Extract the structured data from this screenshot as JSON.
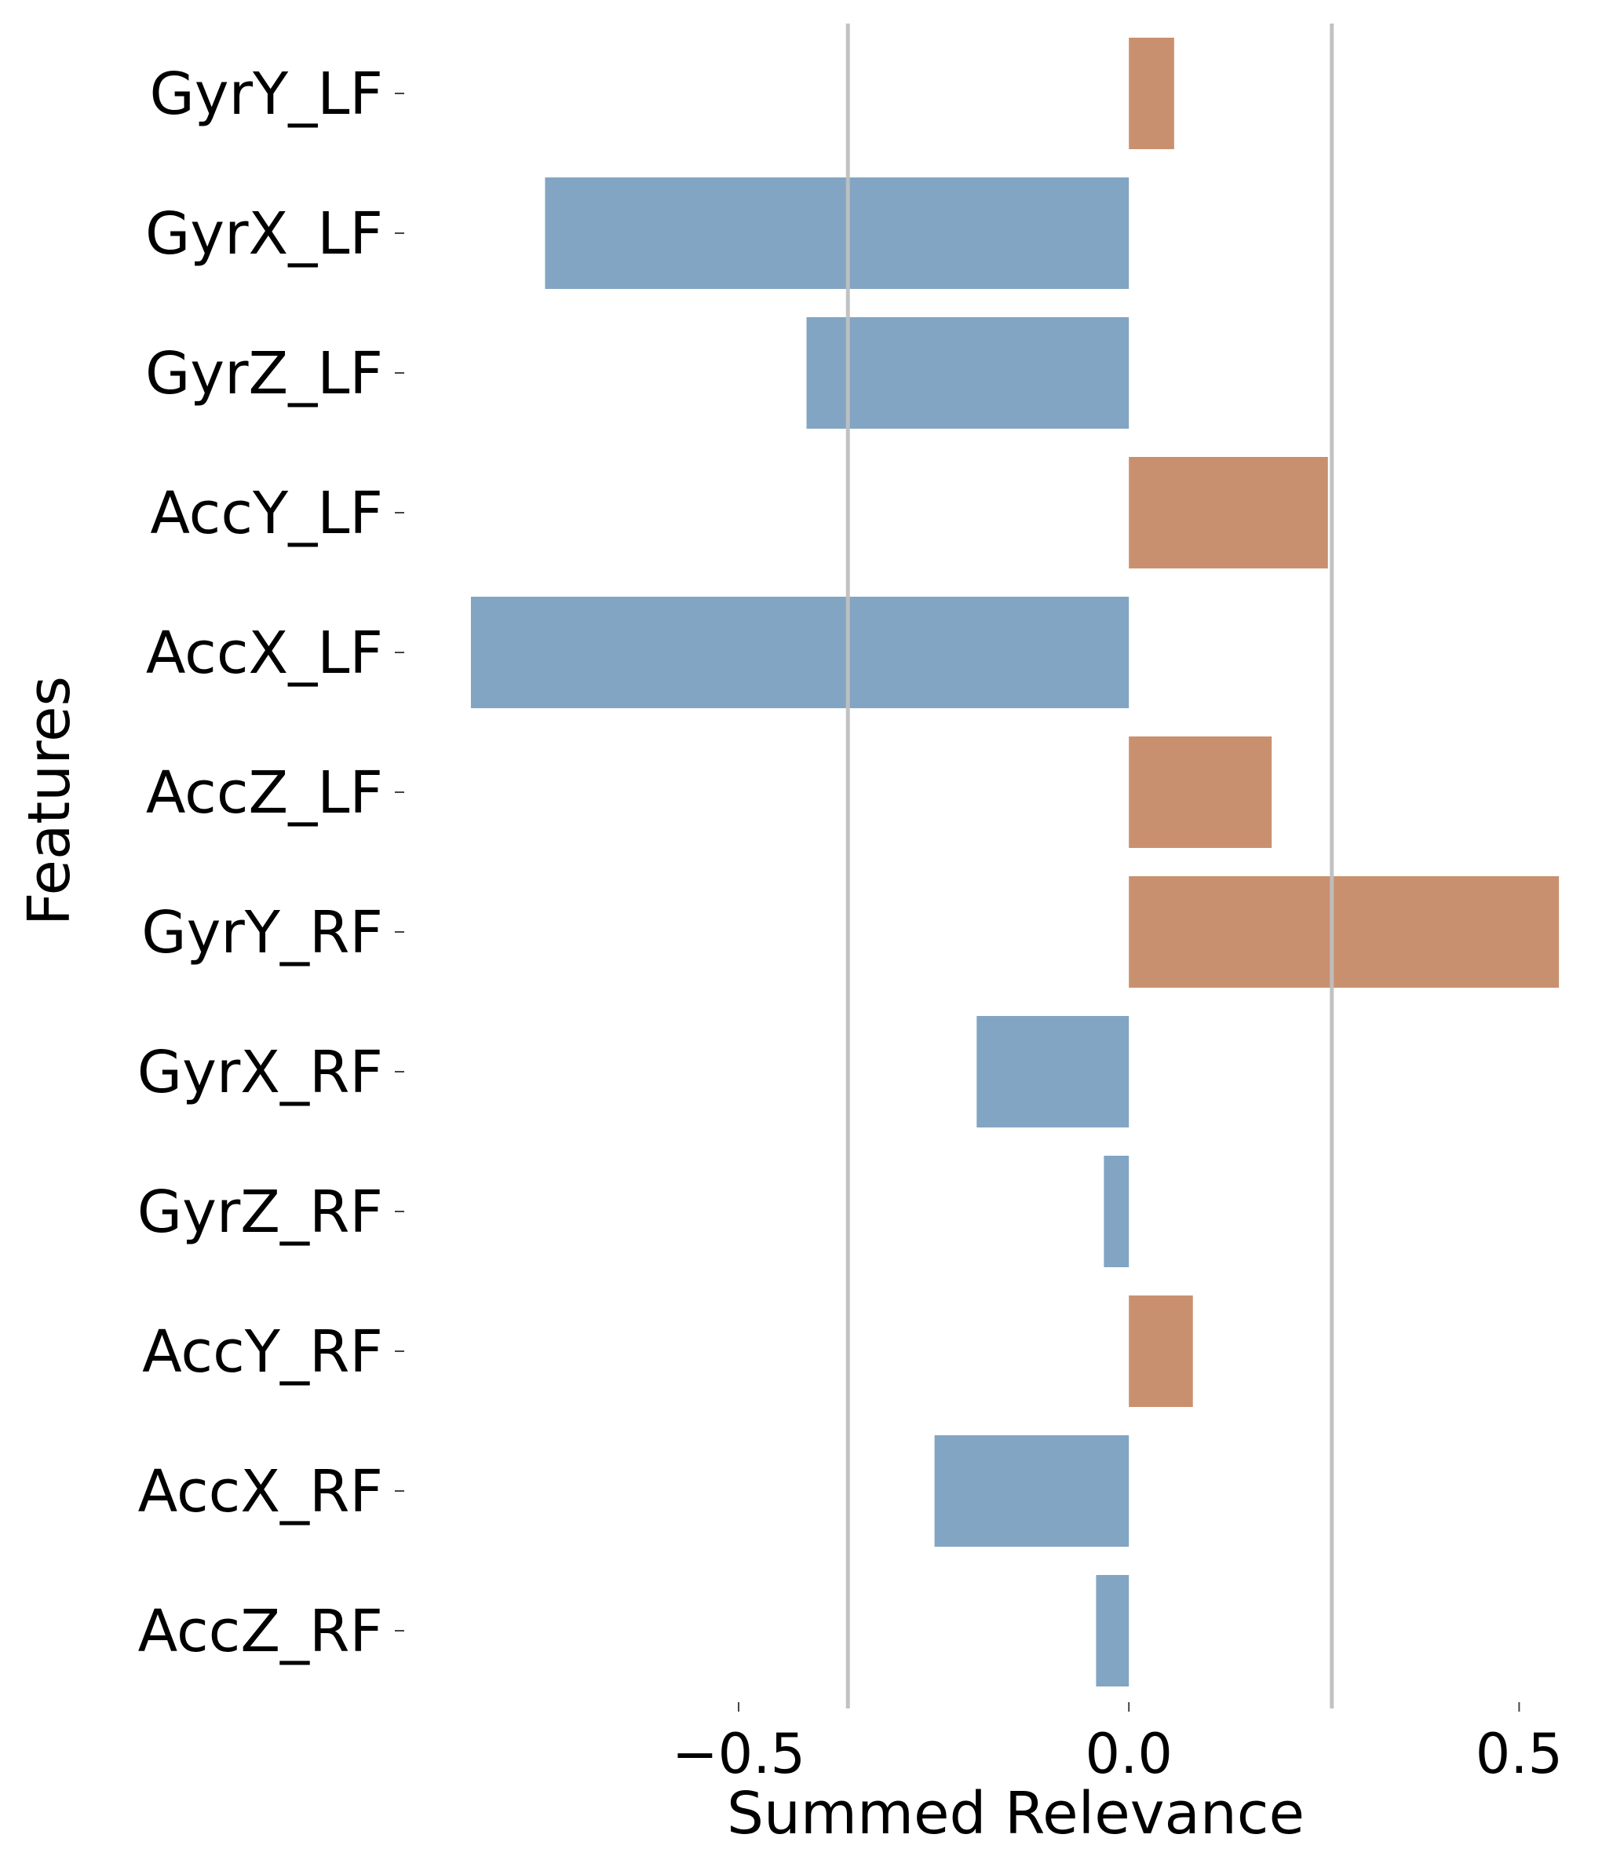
{
  "chart_data": {
    "type": "bar",
    "orientation": "horizontal",
    "categories": [
      "GyrY_LF",
      "GyrX_LF",
      "GyrZ_LF",
      "AccY_LF",
      "AccX_LF",
      "AccZ_LF",
      "GyrY_RF",
      "GyrX_RF",
      "GyrZ_RF",
      "AccY_RF",
      "AccX_RF",
      "AccZ_RF"
    ],
    "values": [
      0.058,
      -0.748,
      -0.413,
      0.255,
      -0.843,
      0.183,
      0.551,
      -0.195,
      -0.032,
      0.082,
      -0.249,
      -0.042
    ],
    "xlabel": "Summed Relevance",
    "ylabel": "Features",
    "xlim": [
      -0.855,
      0.57
    ],
    "xticks": [
      -0.5,
      0.0,
      0.5
    ],
    "xtick_labels": [
      "−0.5",
      "0.0",
      "0.5"
    ],
    "reference_lines": [
      -0.36,
      0.26
    ],
    "colors": {
      "positive": "#c9906f",
      "negative": "#82a5c3",
      "reference_line": "#bfbfbf"
    },
    "grid": false
  }
}
